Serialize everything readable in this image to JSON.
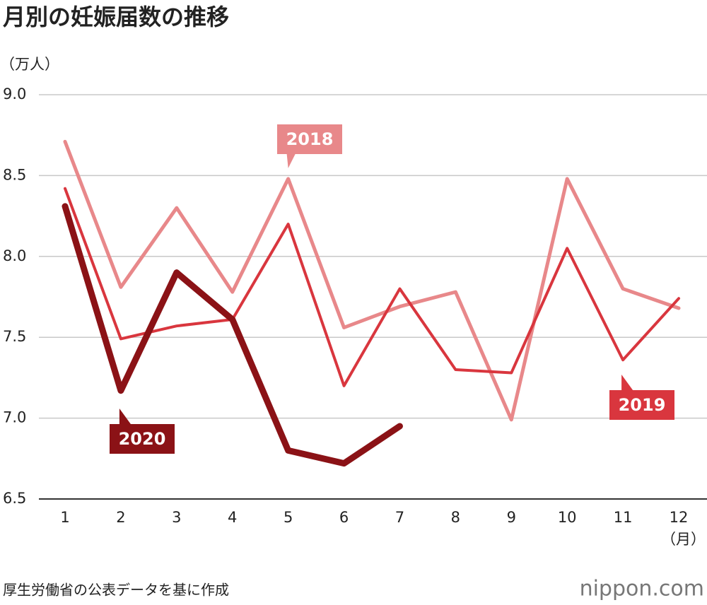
{
  "chart_data": {
    "type": "line",
    "title": "月別の妊娠届数の推移",
    "y_label": "（万人）",
    "x_label": "（月）",
    "source": "厚生労働省の公表データを基に作成",
    "brand": "nippon.com",
    "categories": [
      "1",
      "2",
      "3",
      "4",
      "5",
      "6",
      "7",
      "8",
      "9",
      "10",
      "11",
      "12"
    ],
    "series": [
      {
        "name": "2018",
        "color": "#e8888a",
        "values": [
          8.71,
          7.81,
          8.3,
          7.78,
          8.48,
          7.56,
          7.69,
          7.78,
          6.99,
          8.48,
          7.8,
          7.68
        ]
      },
      {
        "name": "2019",
        "color": "#d9363e",
        "values": [
          8.42,
          7.49,
          7.57,
          7.61,
          8.2,
          7.2,
          7.8,
          7.3,
          7.28,
          8.05,
          7.36,
          7.74
        ]
      },
      {
        "name": "2020",
        "color": "#8b1216",
        "values": [
          8.31,
          7.17,
          7.9,
          7.61,
          6.8,
          6.72,
          6.95,
          null,
          null,
          null,
          null,
          null
        ]
      }
    ],
    "ylim": [
      6.5,
      9.0
    ],
    "yticks": [
      6.5,
      {
        "value": 7,
        "label": "7.0"
      },
      7.5,
      {
        "value": 8,
        "label": "8.0"
      },
      8.5,
      {
        "value": 9,
        "label": "9.0"
      }
    ],
    "grid": true
  }
}
